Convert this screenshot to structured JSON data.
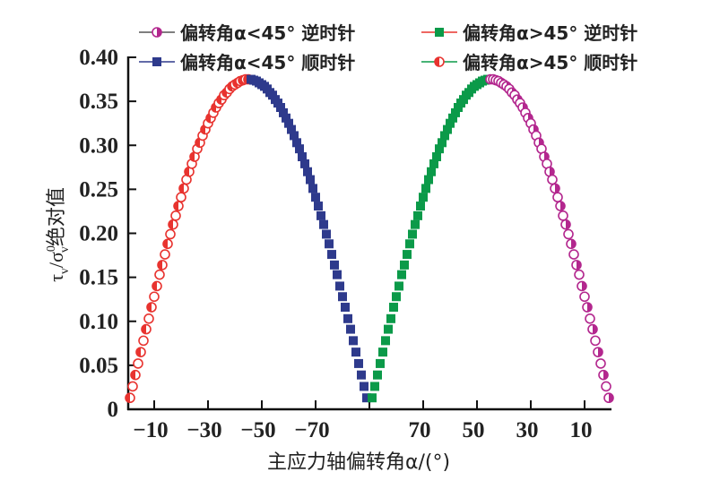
{
  "chart_data": {
    "type": "scatter",
    "title": "",
    "xlabel": "主应力轴偏转角α/(°)",
    "ylabel": {
      "main": "τ",
      "sub1": "v",
      "slash": "/σ",
      "sub2": "v",
      "sup": "0",
      "rest": "绝对值"
    },
    "ylim": [
      0,
      0.4
    ],
    "yticks": [
      {
        "value": 0,
        "label": "0"
      },
      {
        "value": 0.05,
        "label": "0.05"
      },
      {
        "value": 0.1,
        "label": "0.10"
      },
      {
        "value": 0.15,
        "label": "0.15"
      },
      {
        "value": 0.2,
        "label": "0.20"
      },
      {
        "value": 0.25,
        "label": "0.25"
      },
      {
        "value": 0.3,
        "label": "0.30"
      },
      {
        "value": 0.35,
        "label": "0.35"
      },
      {
        "value": 0.4,
        "label": "0.40"
      }
    ],
    "xticks": [
      {
        "value": -10,
        "label": "−10"
      },
      {
        "value": -30,
        "label": "−30"
      },
      {
        "value": -50,
        "label": "−50"
      },
      {
        "value": -70,
        "label": "−70"
      },
      {
        "value": -90,
        "label": ""
      },
      {
        "value": 70,
        "label": "70"
      },
      {
        "value": 50,
        "label": "50"
      },
      {
        "value": 30,
        "label": "30"
      },
      {
        "value": 10,
        "label": "10"
      }
    ],
    "grid": false,
    "legend_position": "top",
    "legend": [
      {
        "label": "偏转角α<45° 逆时针",
        "marker": "half-circle",
        "marker_color": "#b3278e",
        "line_color": "#555555"
      },
      {
        "label": "偏转角α>45° 逆时针",
        "marker": "square",
        "marker_color": "#0b9a49",
        "line_color": "#e8332f"
      },
      {
        "label": "偏转角α<45° 顺时针",
        "marker": "square",
        "marker_color": "#2e3a8c",
        "line_color": "#2e3a8c"
      },
      {
        "label": "偏转角α>45° 顺时针",
        "marker": "half-circle",
        "marker_color": "#e8332f",
        "line_color": "#0b9a49"
      }
    ],
    "series": [
      {
        "name": "left-red",
        "marker": "half-circle",
        "color": "#e8332f",
        "x": [
          -1,
          -2,
          -3,
          -4,
          -5,
          -6,
          -7,
          -8,
          -9,
          -10,
          -11,
          -12,
          -13,
          -14,
          -15,
          -16,
          -17,
          -18,
          -19,
          -20,
          -21,
          -22,
          -23,
          -24,
          -25,
          -26,
          -27,
          -28,
          -29,
          -30,
          -31,
          -32,
          -33,
          -34,
          -35,
          -36,
          -37,
          -38,
          -39,
          -40,
          -41,
          -42,
          -43,
          -44,
          -45
        ],
        "y": [
          0.013,
          0.026,
          0.039,
          0.052,
          0.065,
          0.078,
          0.091,
          0.103,
          0.116,
          0.128,
          0.14,
          0.153,
          0.164,
          0.176,
          0.188,
          0.199,
          0.21,
          0.22,
          0.231,
          0.241,
          0.251,
          0.261,
          0.27,
          0.279,
          0.287,
          0.296,
          0.303,
          0.311,
          0.318,
          0.325,
          0.331,
          0.337,
          0.343,
          0.348,
          0.352,
          0.357,
          0.36,
          0.364,
          0.367,
          0.369,
          0.371,
          0.373,
          0.374,
          0.375,
          0.375
        ]
      },
      {
        "name": "left-blue",
        "marker": "square",
        "color": "#2e3a8c",
        "x": [
          -46,
          -47,
          -48,
          -49,
          -50,
          -51,
          -52,
          -53,
          -54,
          -55,
          -56,
          -57,
          -58,
          -59,
          -60,
          -61,
          -62,
          -63,
          -64,
          -65,
          -66,
          -67,
          -68,
          -69,
          -70,
          -71,
          -72,
          -73,
          -74,
          -75,
          -76,
          -77,
          -78,
          -79,
          -80,
          -81,
          -82,
          -83,
          -84,
          -85,
          -86,
          -87,
          -88,
          -89
        ],
        "y": [
          0.375,
          0.374,
          0.373,
          0.371,
          0.369,
          0.367,
          0.364,
          0.36,
          0.357,
          0.352,
          0.348,
          0.343,
          0.337,
          0.331,
          0.325,
          0.318,
          0.311,
          0.303,
          0.296,
          0.287,
          0.279,
          0.27,
          0.261,
          0.251,
          0.241,
          0.231,
          0.22,
          0.21,
          0.199,
          0.188,
          0.176,
          0.164,
          0.153,
          0.14,
          0.128,
          0.116,
          0.103,
          0.091,
          0.078,
          0.065,
          0.052,
          0.039,
          0.026,
          0.013
        ]
      },
      {
        "name": "right-green",
        "marker": "square",
        "color": "#0b9a49",
        "x": [
          89,
          88,
          87,
          86,
          85,
          84,
          83,
          82,
          81,
          80,
          79,
          78,
          77,
          76,
          75,
          74,
          73,
          72,
          71,
          70,
          69,
          68,
          67,
          66,
          65,
          64,
          63,
          62,
          61,
          60,
          59,
          58,
          57,
          56,
          55,
          54,
          53,
          52,
          51,
          50,
          49,
          48,
          47,
          46
        ],
        "y": [
          0.013,
          0.026,
          0.039,
          0.052,
          0.065,
          0.078,
          0.091,
          0.103,
          0.116,
          0.128,
          0.14,
          0.153,
          0.164,
          0.176,
          0.188,
          0.199,
          0.21,
          0.22,
          0.231,
          0.241,
          0.251,
          0.261,
          0.27,
          0.279,
          0.287,
          0.296,
          0.303,
          0.311,
          0.318,
          0.325,
          0.331,
          0.337,
          0.343,
          0.348,
          0.352,
          0.357,
          0.36,
          0.364,
          0.367,
          0.369,
          0.371,
          0.373,
          0.374,
          0.375
        ]
      },
      {
        "name": "right-magenta",
        "marker": "half-circle",
        "color": "#b3278e",
        "x": [
          45,
          44,
          43,
          42,
          41,
          40,
          39,
          38,
          37,
          36,
          35,
          34,
          33,
          32,
          31,
          30,
          29,
          28,
          27,
          26,
          25,
          24,
          23,
          22,
          21,
          20,
          19,
          18,
          17,
          16,
          15,
          14,
          13,
          12,
          11,
          10,
          9,
          8,
          7,
          6,
          5,
          4,
          3,
          2,
          1
        ],
        "y": [
          0.375,
          0.375,
          0.374,
          0.373,
          0.371,
          0.369,
          0.367,
          0.364,
          0.36,
          0.357,
          0.352,
          0.348,
          0.343,
          0.337,
          0.331,
          0.325,
          0.318,
          0.311,
          0.303,
          0.296,
          0.287,
          0.279,
          0.27,
          0.261,
          0.251,
          0.241,
          0.231,
          0.22,
          0.21,
          0.199,
          0.188,
          0.176,
          0.164,
          0.153,
          0.14,
          0.128,
          0.116,
          0.103,
          0.091,
          0.078,
          0.065,
          0.052,
          0.039,
          0.026,
          0.013
        ]
      }
    ]
  }
}
